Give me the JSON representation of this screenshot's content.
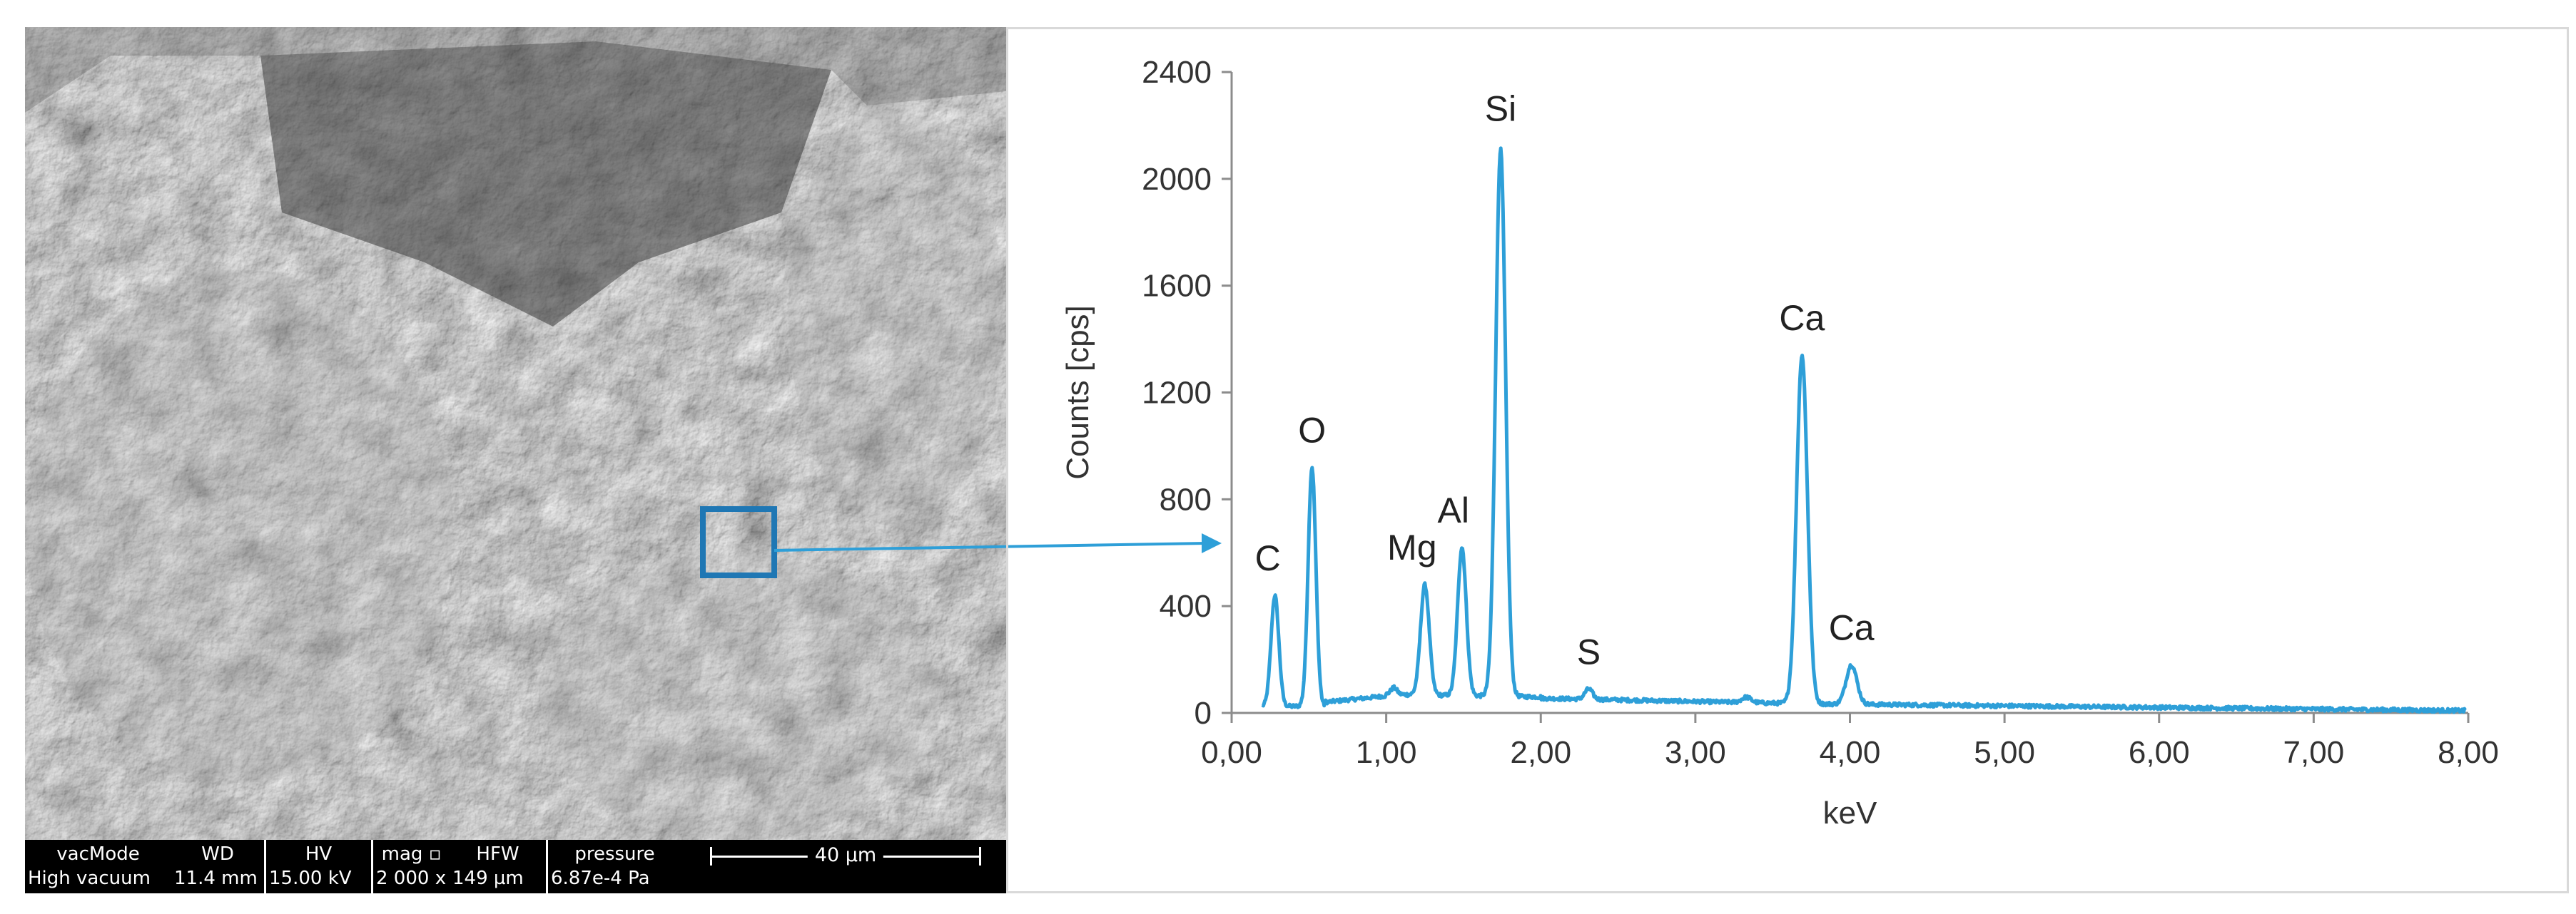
{
  "sem": {
    "databar": {
      "vacmode_header": "vacMode",
      "vacmode_value": "High vacuum",
      "wd_header": "WD",
      "wd_value": "11.4 mm",
      "hv_header": "HV",
      "hv_value": "15.00 kV",
      "mag_header": "mag ▫",
      "mag_value": "2 000 x",
      "hfw_header": "HFW",
      "hfw_value": "149 µm",
      "pressure_header": "pressure",
      "pressure_value": "6.87e-4 Pa",
      "scale_label": "40 µm"
    },
    "roi_color": "#1f77b4",
    "arrow_color": "#2e9fd8"
  },
  "chart_data": {
    "type": "line",
    "xlabel": "keV",
    "ylabel": "Counts [cps]",
    "xlim": [
      0,
      8
    ],
    "ylim": [
      0,
      2400
    ],
    "x_ticks": [
      "0,00",
      "1,00",
      "2,00",
      "3,00",
      "4,00",
      "5,00",
      "6,00",
      "7,00",
      "8,00"
    ],
    "y_ticks": [
      "0",
      "400",
      "800",
      "1200",
      "1600",
      "2000",
      "2400"
    ],
    "x_tick_values": [
      0,
      1,
      2,
      3,
      4,
      5,
      6,
      7,
      8
    ],
    "y_tick_values": [
      0,
      400,
      800,
      1200,
      1600,
      2000,
      2400
    ],
    "grid": false,
    "series": [
      {
        "color": "#2e9fd8",
        "peaks": [
          {
            "element": "C",
            "x": 0.28,
            "y": 440
          },
          {
            "element": "O",
            "x": 0.52,
            "y": 920
          },
          {
            "element": "Mg",
            "x": 1.25,
            "y": 480
          },
          {
            "element": "Al",
            "x": 1.49,
            "y": 620
          },
          {
            "element": "Si",
            "x": 1.74,
            "y": 2110
          },
          {
            "element": "S",
            "x": 2.31,
            "y": 90
          },
          {
            "element": "Ca",
            "x": 3.69,
            "y": 1340
          },
          {
            "element": "Ca",
            "x": 4.01,
            "y": 180
          }
        ]
      }
    ],
    "annotations": [
      {
        "text": "C",
        "x": 0.28,
        "y": 440
      },
      {
        "text": "O",
        "x": 0.52,
        "y": 920
      },
      {
        "text": "Mg",
        "x": 1.25,
        "y": 480
      },
      {
        "text": "Al",
        "x": 1.49,
        "y": 620
      },
      {
        "text": "Si",
        "x": 1.74,
        "y": 2110
      },
      {
        "text": "S",
        "x": 2.31,
        "y": 90
      },
      {
        "text": "Ca",
        "x": 3.69,
        "y": 1340
      },
      {
        "text": "Ca",
        "x": 4.01,
        "y": 180
      }
    ]
  }
}
